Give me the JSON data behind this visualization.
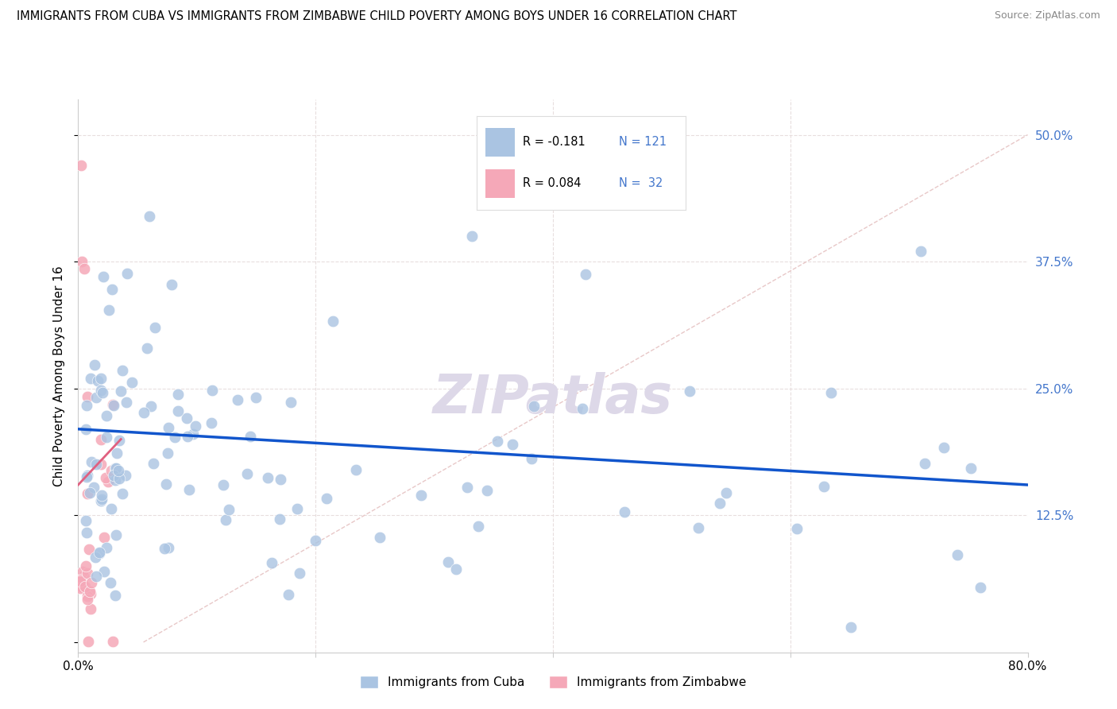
{
  "title": "IMMIGRANTS FROM CUBA VS IMMIGRANTS FROM ZIMBABWE CHILD POVERTY AMONG BOYS UNDER 16 CORRELATION CHART",
  "source": "Source: ZipAtlas.com",
  "ylabel": "Child Poverty Among Boys Under 16",
  "yticks": [
    0.0,
    0.125,
    0.25,
    0.375,
    0.5
  ],
  "ytick_labels": [
    "",
    "12.5%",
    "25.0%",
    "37.5%",
    "50.0%"
  ],
  "xmin": 0.0,
  "xmax": 0.8,
  "ymin": -0.01,
  "ymax": 0.535,
  "cuba_R": -0.181,
  "cuba_N": 121,
  "zimbabwe_R": 0.084,
  "zimbabwe_N": 32,
  "cuba_color": "#aac4e2",
  "zimbabwe_color": "#f5a8b8",
  "cuba_line_color": "#1155cc",
  "zimbabwe_line_color": "#e06080",
  "diagonal_color": "#e8c8c8",
  "legend_cuba_label": "Immigrants from Cuba",
  "legend_zimbabwe_label": "Immigrants from Zimbabwe",
  "watermark": "ZIPatlas",
  "background_color": "#ffffff",
  "grid_color": "#e8dede",
  "tick_label_color": "#4477cc"
}
